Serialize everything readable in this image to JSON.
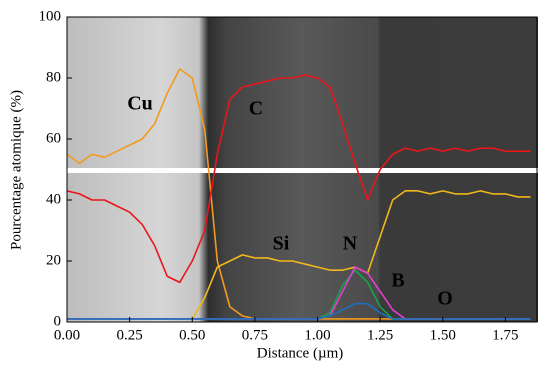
{
  "chart_data": {
    "type": "line",
    "x_label": "Distance (µm)",
    "y_label": "Pourcentage atomique (%)",
    "x": [
      0,
      0.05,
      0.1,
      0.15,
      0.2,
      0.25,
      0.3,
      0.35,
      0.4,
      0.45,
      0.5,
      0.55,
      0.6,
      0.65,
      0.7,
      0.75,
      0.8,
      0.85,
      0.9,
      0.95,
      1.0,
      1.05,
      1.1,
      1.15,
      1.2,
      1.25,
      1.3,
      1.35,
      1.4,
      1.45,
      1.5,
      1.55,
      1.6,
      1.65,
      1.7,
      1.75,
      1.8,
      1.85
    ],
    "series": [
      {
        "name": "Cu",
        "color": "#f39a1e",
        "values": [
          55,
          52,
          55,
          54,
          56,
          58,
          60,
          65,
          75,
          83,
          80,
          63,
          20,
          5,
          2,
          1,
          1,
          1,
          1,
          1,
          1,
          1,
          1,
          1,
          1,
          1,
          1,
          1,
          1,
          1,
          1,
          1,
          1,
          1,
          1,
          1,
          1,
          1
        ]
      },
      {
        "name": "C",
        "color": "#e8161b",
        "values": [
          43,
          42,
          40,
          40,
          38,
          36,
          32,
          25,
          15,
          13,
          20,
          30,
          55,
          73,
          77,
          78,
          79,
          80,
          80,
          81,
          80,
          77,
          65,
          52,
          40,
          50,
          55,
          57,
          56,
          57,
          56,
          57,
          56,
          57,
          57,
          56,
          56,
          56
        ]
      },
      {
        "name": "Si",
        "color": "#f0b81a",
        "values": [
          1,
          1,
          1,
          1,
          1,
          1,
          1,
          1,
          1,
          1,
          1,
          8,
          18,
          20,
          22,
          21,
          21,
          20,
          20,
          19,
          18,
          17,
          17,
          18,
          16,
          28,
          40,
          43,
          43,
          42,
          43,
          42,
          42,
          43,
          42,
          42,
          41,
          41
        ]
      },
      {
        "name": "N",
        "color": "#17a34a",
        "values": [
          1,
          1,
          1,
          1,
          1,
          1,
          1,
          1,
          1,
          1,
          1,
          1,
          1,
          1,
          1,
          1,
          1,
          1,
          1,
          1,
          1,
          3,
          12,
          17,
          13,
          5,
          1,
          1,
          1,
          1,
          1,
          1,
          1,
          1,
          1,
          1,
          1,
          1
        ]
      },
      {
        "name": "B",
        "color": "#e33fd1",
        "values": [
          1,
          1,
          1,
          1,
          1,
          1,
          1,
          1,
          1,
          1,
          1,
          1,
          1,
          1,
          1,
          1,
          1,
          1,
          1,
          1,
          1,
          2,
          10,
          18,
          16,
          10,
          4,
          1,
          1,
          1,
          1,
          1,
          1,
          1,
          1,
          1,
          1,
          1
        ]
      },
      {
        "name": "O",
        "color": "#1f6fc0",
        "values": [
          1,
          1,
          1,
          1,
          1,
          1,
          1,
          1,
          1,
          1,
          1,
          1,
          1,
          1,
          1,
          1,
          1,
          1,
          1,
          1,
          1,
          2,
          4,
          6,
          6,
          3,
          1,
          1,
          1,
          1,
          1,
          1,
          1,
          1,
          1,
          1,
          1,
          1
        ]
      }
    ],
    "xlim": [
      0,
      1.88
    ],
    "ylim": [
      0,
      100
    ],
    "xticks": [
      {
        "value": 0,
        "label": "0.00"
      },
      {
        "value": 0.25,
        "label": "0.25"
      },
      {
        "value": 0.5,
        "label": "0.50"
      },
      {
        "value": 0.75,
        "label": "0.75"
      },
      {
        "value": 1,
        "label": "1.00"
      },
      {
        "value": 1.25,
        "label": "1.25"
      },
      {
        "value": 1.5,
        "label": "1.50"
      },
      {
        "value": 1.75,
        "label": "1.75"
      }
    ],
    "yticks": [
      0,
      20,
      40,
      60,
      80,
      100
    ]
  }
}
